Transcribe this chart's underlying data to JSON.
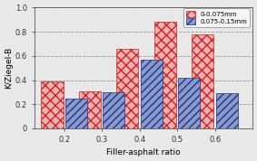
{
  "categories": [
    0.2,
    0.3,
    0.4,
    0.5,
    0.6
  ],
  "series1_label": "0-0.075mm",
  "series2_label": "0.075-0.15mm",
  "series1_values": [
    0.39,
    0.31,
    0.66,
    0.88,
    0.78
  ],
  "series2_values": [
    0.25,
    0.3,
    0.57,
    0.42,
    0.29
  ],
  "series1_facecolor": "#f0b0b0",
  "series1_edgecolor": "#cc2222",
  "series2_facecolor": "#8899cc",
  "series2_edgecolor": "#223388",
  "xlabel": "Filler-asphalt ratio",
  "ylabel": "K/Ziegel-B",
  "ylim": [
    0,
    1.0
  ],
  "yticks": [
    0,
    0.2,
    0.4,
    0.6,
    0.8,
    1.0
  ],
  "bar_width": 0.058,
  "background_color": "#e8e8e8",
  "plot_bg_color": "#e8e8e8",
  "grid_color": "#999999"
}
